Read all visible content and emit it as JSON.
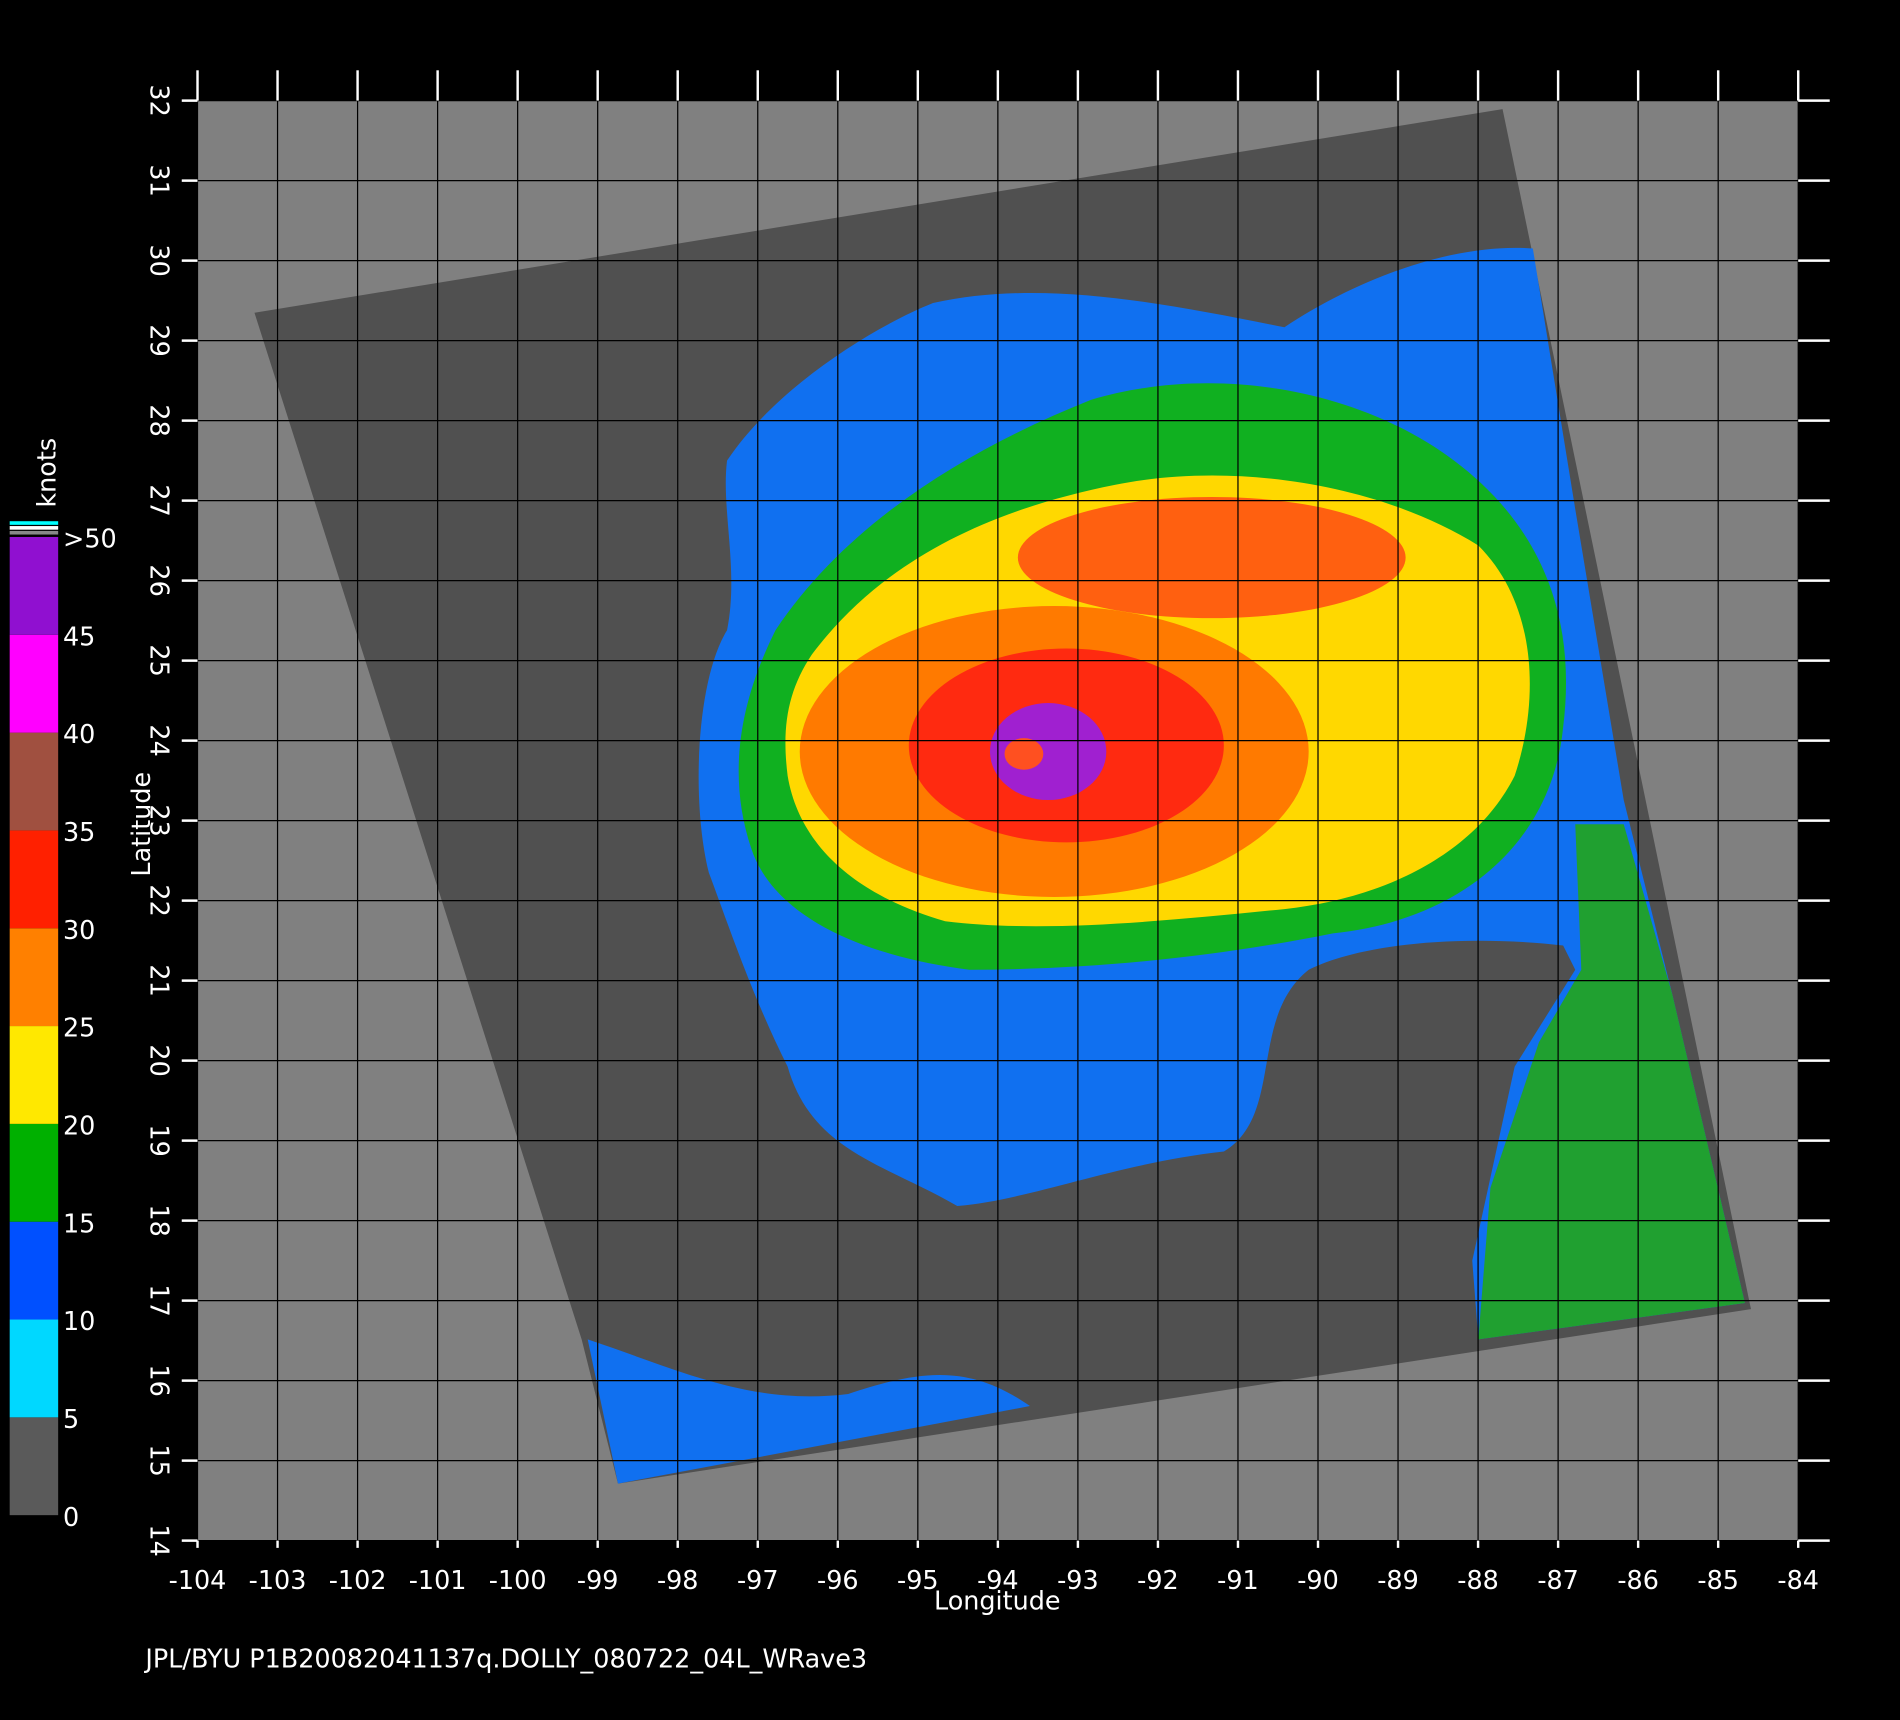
{
  "chart_data": {
    "type": "map",
    "xlabel": "Longitude",
    "ylabel": "Latitude",
    "xlim": [
      -104,
      -84
    ],
    "xticks": [
      -104,
      -103,
      -102,
      -101,
      -100,
      -99,
      -98,
      -97,
      -96,
      -95,
      -94,
      -93,
      -92,
      -91,
      -90,
      -89,
      -88,
      -87,
      -86,
      -85,
      -84
    ],
    "ylim": [
      14,
      32
    ],
    "yticks": [
      14,
      15,
      16,
      17,
      18,
      19,
      20,
      21,
      22,
      23,
      24,
      25,
      26,
      27,
      28,
      29,
      30,
      31,
      32
    ],
    "grid": true,
    "colorbar": {
      "label": "knots",
      "lim": [
        0,
        50
      ],
      "ticks": [
        0,
        5,
        10,
        15,
        20,
        25,
        30,
        35,
        40,
        45,
        {
          "value": 50,
          "label": ">50"
        }
      ],
      "colors": [
        "#5a5a5a",
        "#00d8ff",
        "#0050ff",
        "#00b000",
        "#ffe800",
        "#ff8000",
        "#ff2000",
        "#a05040",
        "#ff00ff",
        "#9010d0"
      ]
    },
    "footer": "JPL/BYU  P1B20082041137q.DOLLY_080722_04L_WRave3"
  }
}
